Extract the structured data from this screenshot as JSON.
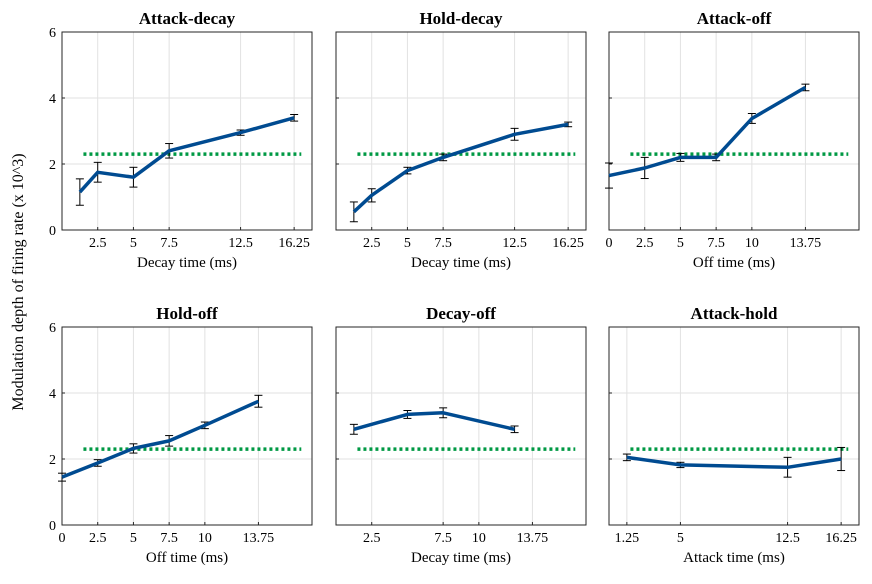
{
  "figure": {
    "ylabel": "Modulation depth of firing rate (x 10^3)"
  },
  "chart_data": [
    {
      "type": "line",
      "title": "Attack-decay",
      "xlabel": "Decay time (ms)",
      "ylabel": "Modulation depth of firing rate (x 10^3)",
      "xlim": [
        0,
        17.5
      ],
      "ylim": [
        0,
        6
      ],
      "grid": true,
      "xticks": [
        2.5,
        5,
        7.5,
        12.5,
        16.25
      ],
      "xtick_labels": [
        "2.5",
        "5",
        "7.5",
        "12.5",
        "16.25"
      ],
      "yticks": [
        0,
        2,
        4,
        6
      ],
      "ytick_labels": [
        "0",
        "2",
        "4",
        "6"
      ],
      "series": [
        {
          "x": [
            1.25,
            2.5,
            5,
            7.5,
            12.5,
            16.25
          ],
          "values": [
            1.15,
            1.75,
            1.6,
            2.4,
            2.95,
            3.4
          ],
          "err": [
            0.4,
            0.3,
            0.3,
            0.22,
            0.08,
            0.1
          ],
          "color": "#004b91"
        }
      ],
      "reference_line": {
        "y": 2.3,
        "color": "#009944"
      }
    },
    {
      "type": "line",
      "title": "Hold-decay",
      "xlabel": "Decay time (ms)",
      "ylabel": "",
      "xlim": [
        0,
        17.5
      ],
      "ylim": [
        0,
        6
      ],
      "grid": true,
      "xticks": [
        2.5,
        5,
        7.5,
        12.5,
        16.25
      ],
      "xtick_labels": [
        "2.5",
        "5",
        "7.5",
        "12.5",
        "16.25"
      ],
      "yticks": [
        0,
        2,
        4,
        6
      ],
      "ytick_labels": [
        "",
        "",
        "",
        ""
      ],
      "series": [
        {
          "x": [
            1.25,
            2.5,
            5,
            7.5,
            12.5,
            16.25
          ],
          "values": [
            0.55,
            1.05,
            1.8,
            2.2,
            2.9,
            3.2
          ],
          "err": [
            0.3,
            0.2,
            0.1,
            0.1,
            0.18,
            0.07
          ],
          "color": "#004b91"
        }
      ],
      "reference_line": {
        "y": 2.3,
        "color": "#009944"
      }
    },
    {
      "type": "line",
      "title": "Attack-off",
      "xlabel": "Off time (ms)",
      "ylabel": "",
      "xlim": [
        0,
        17.5
      ],
      "ylim": [
        0,
        6
      ],
      "grid": true,
      "xticks": [
        0,
        2.5,
        5,
        7.5,
        10,
        13.75
      ],
      "xtick_labels": [
        "0",
        "2.5",
        "5",
        "7.5",
        "10",
        "13.75"
      ],
      "yticks": [
        0,
        2,
        4,
        6
      ],
      "ytick_labels": [
        "",
        "",
        "",
        ""
      ],
      "series": [
        {
          "x": [
            0,
            2.5,
            5,
            7.5,
            10,
            13.75
          ],
          "values": [
            1.65,
            1.88,
            2.2,
            2.2,
            3.38,
            4.32
          ],
          "err": [
            0.38,
            0.32,
            0.12,
            0.1,
            0.15,
            0.1
          ],
          "color": "#004b91"
        }
      ],
      "reference_line": {
        "y": 2.3,
        "color": "#009944"
      }
    },
    {
      "type": "line",
      "title": "Hold-off",
      "xlabel": "Off time (ms)",
      "ylabel": "",
      "xlim": [
        0,
        17.5
      ],
      "ylim": [
        0,
        6
      ],
      "grid": true,
      "xticks": [
        0,
        2.5,
        5,
        7.5,
        10,
        13.75
      ],
      "xtick_labels": [
        "0",
        "2.5",
        "5",
        "7.5",
        "10",
        "13.75"
      ],
      "yticks": [
        0,
        2,
        4,
        6
      ],
      "ytick_labels": [
        "0",
        "2",
        "4",
        "6"
      ],
      "series": [
        {
          "x": [
            0,
            2.5,
            5,
            7.5,
            10,
            13.75
          ],
          "values": [
            1.45,
            1.88,
            2.32,
            2.55,
            3.02,
            3.75
          ],
          "err": [
            0.12,
            0.1,
            0.14,
            0.16,
            0.1,
            0.18
          ],
          "color": "#004b91"
        }
      ],
      "reference_line": {
        "y": 2.3,
        "color": "#009944"
      }
    },
    {
      "type": "line",
      "title": "Decay-off",
      "xlabel": "Decay time (ms)",
      "ylabel": "",
      "xlim": [
        0,
        17.5
      ],
      "ylim": [
        0,
        6
      ],
      "grid": true,
      "xticks": [
        2.5,
        7.5,
        10,
        13.75
      ],
      "xtick_labels": [
        "2.5",
        "7.5",
        "10",
        "13.75"
      ],
      "yticks": [
        0,
        2,
        4,
        6
      ],
      "ytick_labels": [
        "",
        "",
        "",
        ""
      ],
      "series": [
        {
          "x": [
            1.25,
            5,
            7.5,
            12.5
          ],
          "values": [
            2.9,
            3.35,
            3.4,
            2.9
          ],
          "err": [
            0.15,
            0.12,
            0.15,
            0.1
          ],
          "color": "#004b91"
        }
      ],
      "reference_line": {
        "y": 2.3,
        "color": "#009944"
      }
    },
    {
      "type": "line",
      "title": "Attack-hold",
      "xlabel": "Attack time (ms)",
      "ylabel": "",
      "xlim": [
        0,
        17.5
      ],
      "ylim": [
        0,
        6
      ],
      "grid": true,
      "xticks": [
        1.25,
        5,
        12.5,
        16.25
      ],
      "xtick_labels": [
        "1.25",
        "5",
        "12.5",
        "16.25"
      ],
      "yticks": [
        0,
        2,
        4,
        6
      ],
      "ytick_labels": [
        "",
        "",
        "",
        ""
      ],
      "series": [
        {
          "x": [
            1.25,
            5,
            12.5,
            16.25
          ],
          "values": [
            2.05,
            1.82,
            1.75,
            2.0
          ],
          "err": [
            0.1,
            0.08,
            0.3,
            0.35
          ],
          "color": "#004b91"
        }
      ],
      "reference_line": {
        "y": 2.3,
        "color": "#009944"
      }
    }
  ]
}
